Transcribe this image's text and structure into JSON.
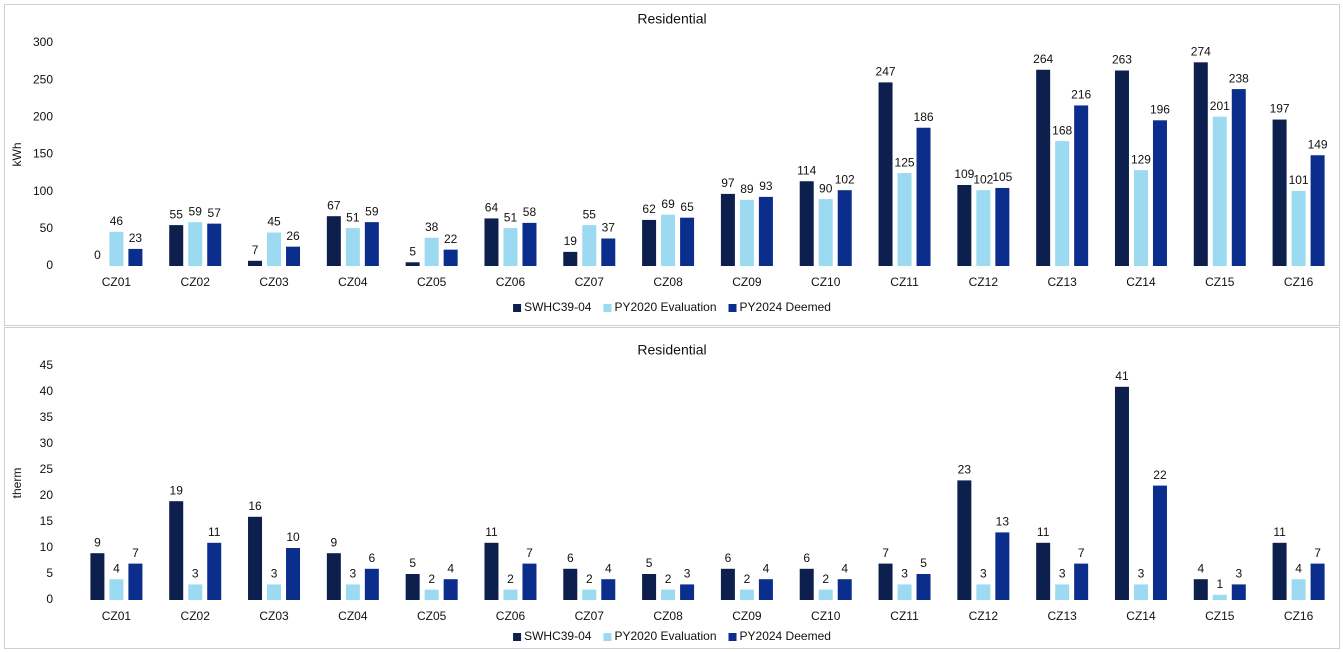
{
  "chart_data": [
    {
      "type": "bar",
      "title": "Residential",
      "y_label": "kWh",
      "categories": [
        "CZ01",
        "CZ02",
        "CZ03",
        "CZ04",
        "CZ05",
        "CZ06",
        "CZ07",
        "CZ08",
        "CZ09",
        "CZ10",
        "CZ11",
        "CZ12",
        "CZ13",
        "CZ14",
        "CZ15",
        "CZ16"
      ],
      "series": [
        {
          "name": "SWHC39-04",
          "color": "#0c1f4d",
          "values": [
            0,
            55,
            7,
            67,
            5,
            64,
            19,
            62,
            97,
            114,
            247,
            109,
            264,
            263,
            274,
            197
          ]
        },
        {
          "name": "PY2020 Evaluation",
          "color": "#9cdaf2",
          "values": [
            46,
            59,
            45,
            51,
            38,
            51,
            55,
            69,
            89,
            90,
            125,
            102,
            168,
            129,
            201,
            101
          ]
        },
        {
          "name": "PY2024 Deemed",
          "color": "#0b2e8c",
          "values": [
            23,
            57,
            26,
            59,
            22,
            58,
            37,
            65,
            93,
            102,
            186,
            105,
            216,
            196,
            238,
            149
          ]
        }
      ],
      "ylim": [
        0,
        300
      ],
      "yticks": [
        0,
        50,
        100,
        150,
        200,
        250,
        300
      ],
      "grid": false,
      "legend": "bottom"
    },
    {
      "type": "bar",
      "title": "Residential",
      "y_label": "therm",
      "categories": [
        "CZ01",
        "CZ02",
        "CZ03",
        "CZ04",
        "CZ05",
        "CZ06",
        "CZ07",
        "CZ08",
        "CZ09",
        "CZ10",
        "CZ11",
        "CZ12",
        "CZ13",
        "CZ14",
        "CZ15",
        "CZ16"
      ],
      "series": [
        {
          "name": "SWHC39-04",
          "color": "#0c1f4d",
          "values": [
            9,
            19,
            16,
            9,
            5,
            11,
            6,
            5,
            6,
            6,
            7,
            23,
            11,
            41,
            4,
            11
          ]
        },
        {
          "name": "PY2020 Evaluation",
          "color": "#9cdaf2",
          "values": [
            4,
            3,
            3,
            3,
            2,
            2,
            2,
            2,
            2,
            2,
            3,
            3,
            3,
            3,
            1,
            4
          ]
        },
        {
          "name": "PY2024 Deemed",
          "color": "#0b2e8c",
          "values": [
            7,
            11,
            10,
            6,
            4,
            7,
            4,
            3,
            4,
            4,
            5,
            13,
            7,
            22,
            3,
            7
          ]
        }
      ],
      "ylim": [
        0,
        45
      ],
      "yticks": [
        0,
        5,
        10,
        15,
        20,
        25,
        30,
        35,
        40,
        45
      ],
      "grid": false,
      "legend": "bottom"
    }
  ]
}
